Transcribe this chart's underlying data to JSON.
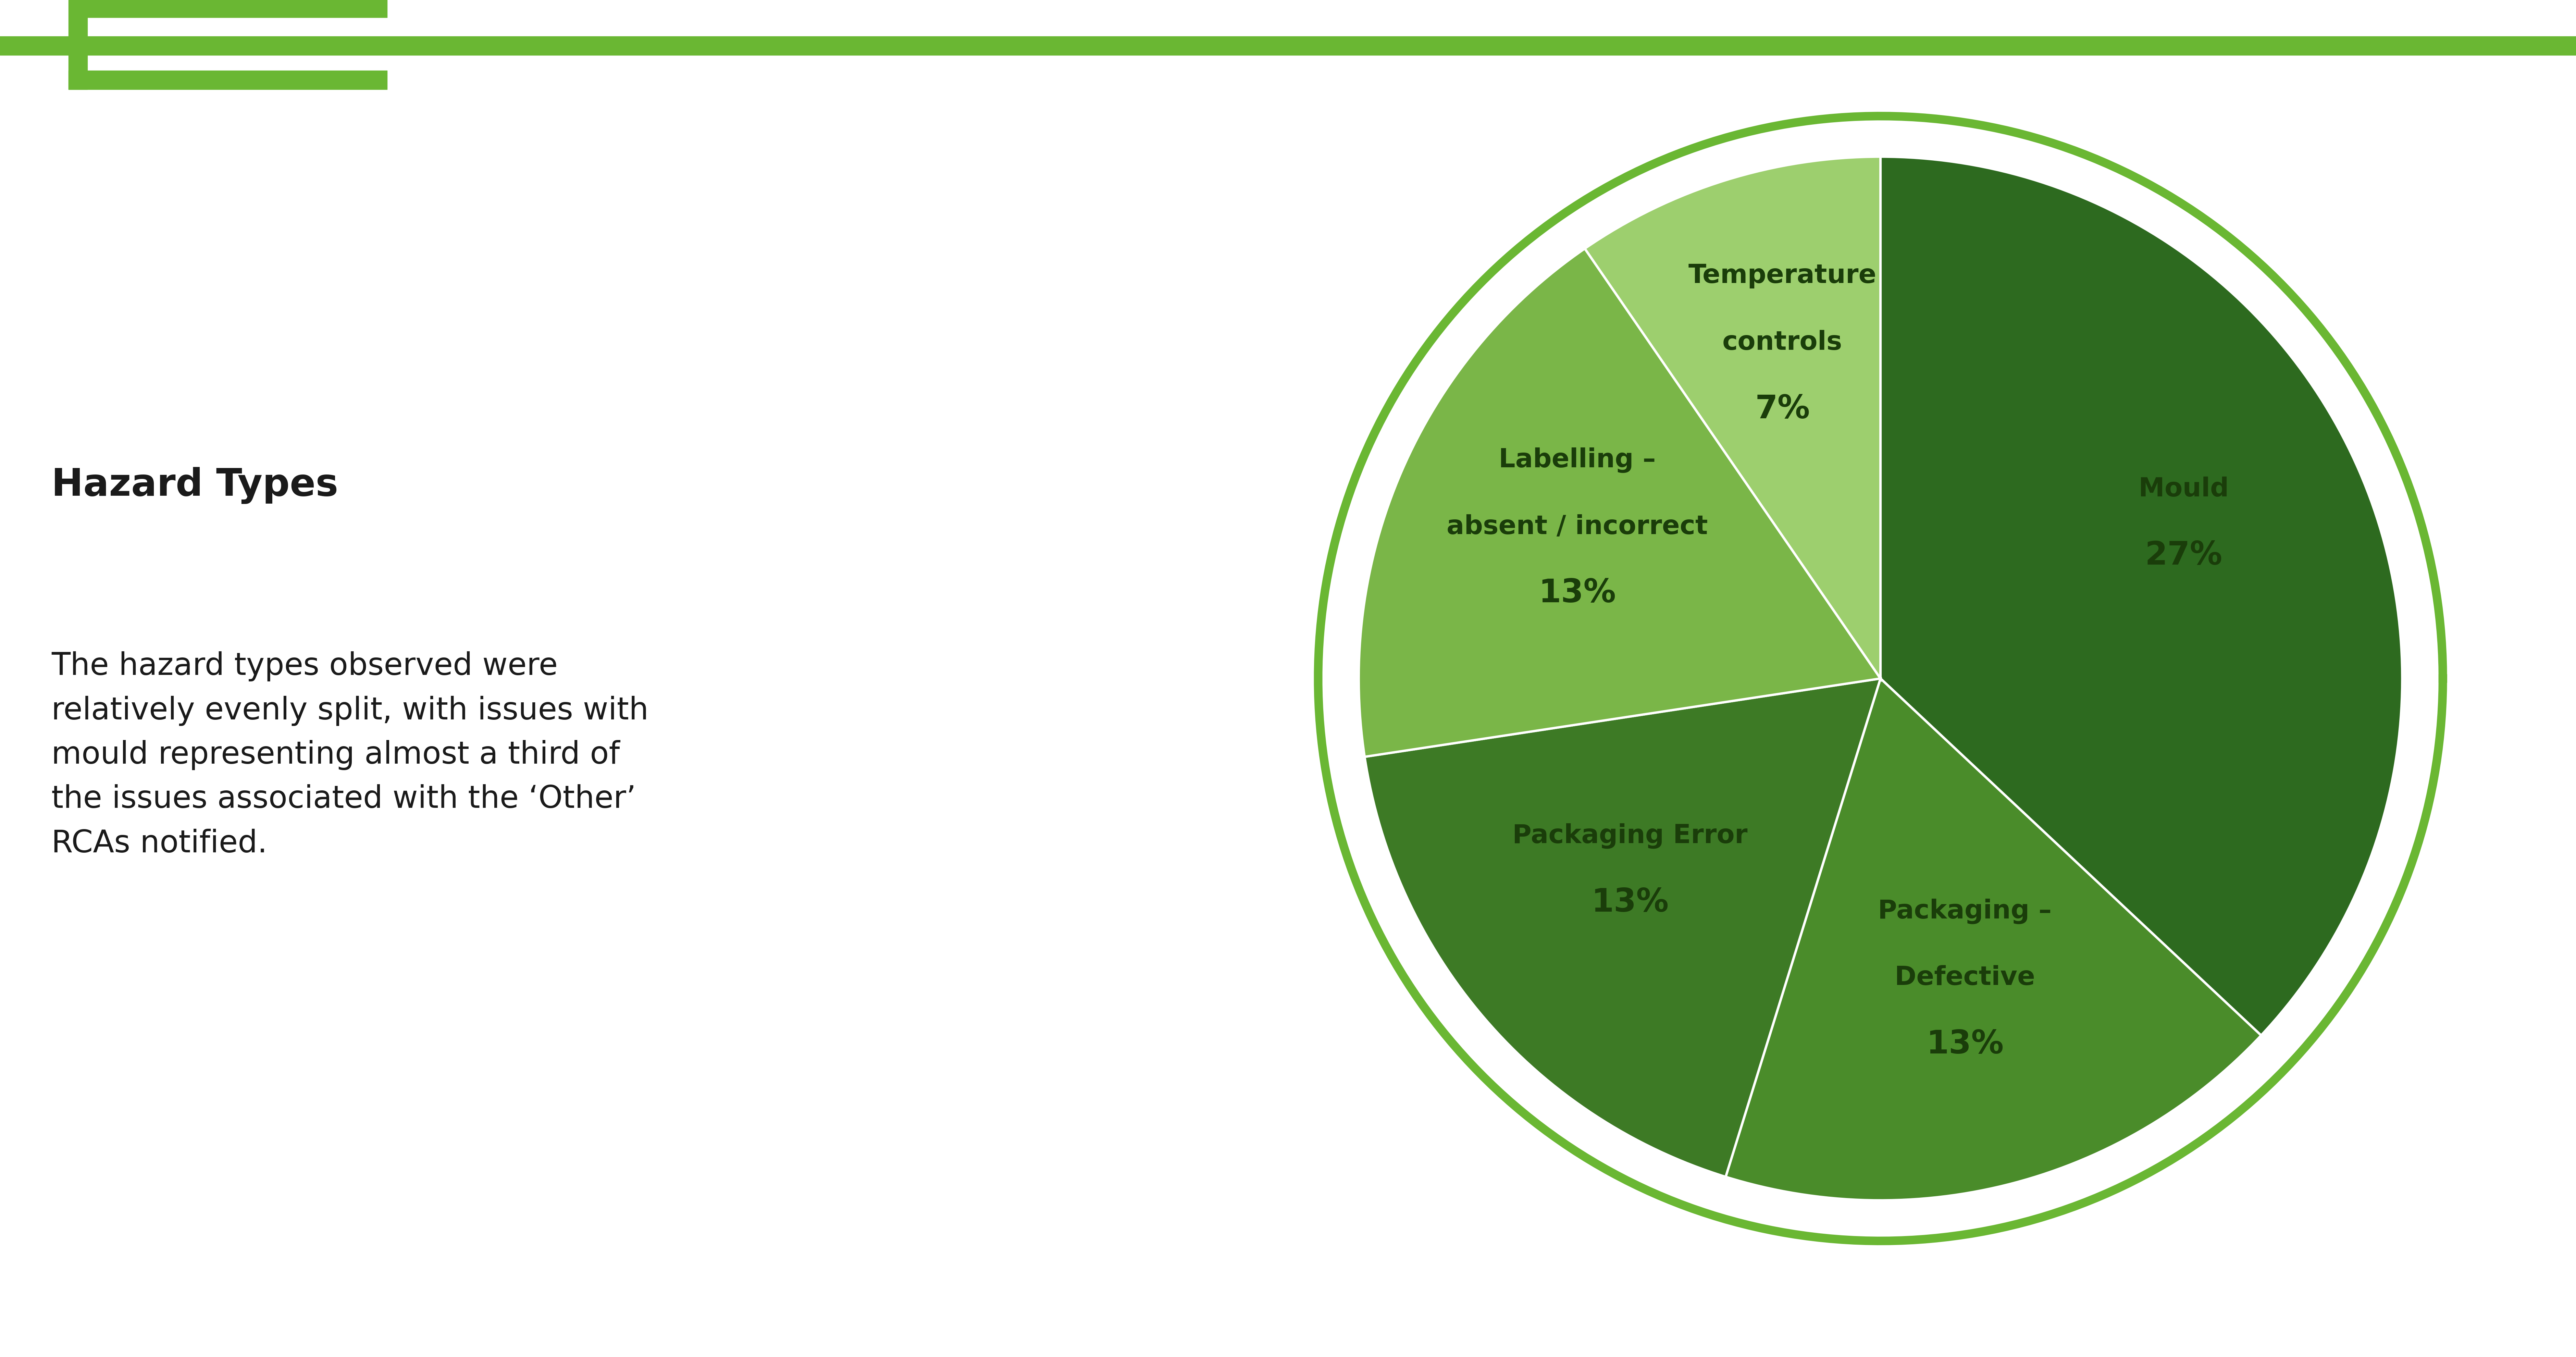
{
  "slices": [
    {
      "label": "Mould",
      "pct_label": "27%",
      "value": 27,
      "color": "#2d6a1f"
    },
    {
      "label": "Packaging –\nDefective",
      "pct_label": "13%",
      "value": 13,
      "color": "#4a8c2a"
    },
    {
      "label": "Packaging Error",
      "pct_label": "13%",
      "value": 13,
      "color": "#3d7a25"
    },
    {
      "label": "Labelling –\nabsent / incorrect",
      "pct_label": "13%",
      "value": 13,
      "color": "#7ab648"
    },
    {
      "label": "Temperature\ncontrols",
      "pct_label": "7%",
      "value": 7,
      "color": "#9dcf6e"
    }
  ],
  "background_color": "#ffffff",
  "pie_border_color": "#6ab733",
  "wedge_line_color": "#ffffff",
  "text_color": "#1a1a1a",
  "dark_text_color": "#1a3d0a",
  "title_text": "Hazard Types",
  "body_text": "The hazard types observed were\nrelatively evenly split, with issues with\nmould representing almost a third of\nthe issues associated with the ‘Other’\nRCAs notified.",
  "title_fontsize": 80,
  "body_fontsize": 65,
  "label_fontsize": 55,
  "pct_fontsize": 68,
  "green_bar_color": "#6ab733",
  "green_frame_color": "#6ab733"
}
